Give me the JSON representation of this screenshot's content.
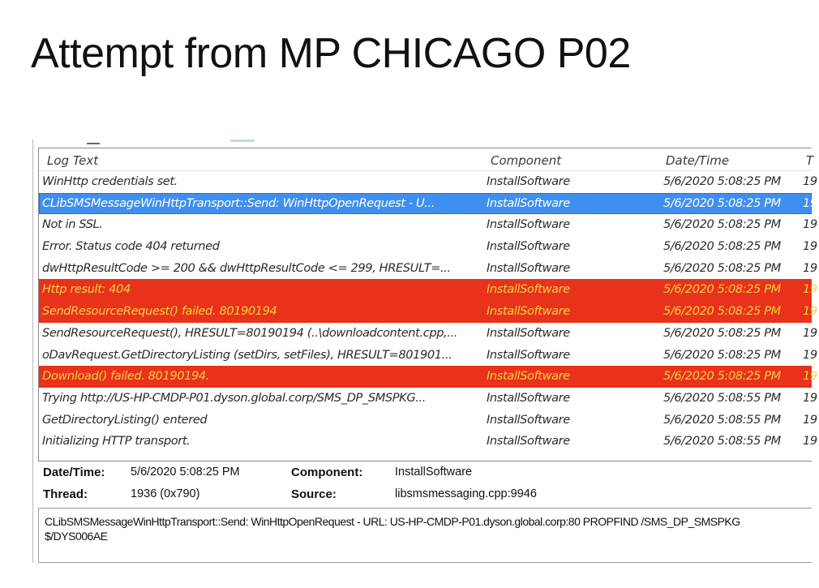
{
  "slide": {
    "title": "Attempt from MP CHICAGO P02"
  },
  "log": {
    "columns": [
      "Log Text",
      "Component",
      "Date/Time",
      "T"
    ],
    "rows": [
      {
        "text": "WinHttp credentials set.",
        "component": "InstallSoftware",
        "datetime": "5/6/2020 5:08:25 PM",
        "thread": "19",
        "state": "normal"
      },
      {
        "text": "CLibSMSMessageWinHttpTransport::Send: WinHttpOpenRequest - U...",
        "component": "InstallSoftware",
        "datetime": "5/6/2020 5:08:25 PM",
        "thread": "19",
        "state": "selected"
      },
      {
        "text": "Not in SSL.",
        "component": "InstallSoftware",
        "datetime": "5/6/2020 5:08:25 PM",
        "thread": "19",
        "state": "normal"
      },
      {
        "text": "Error. Status code 404 returned",
        "component": "InstallSoftware",
        "datetime": "5/6/2020 5:08:25 PM",
        "thread": "19",
        "state": "normal"
      },
      {
        "text": "dwHttpResultCode >= 200 && dwHttpResultCode <= 299, HRESULT=...",
        "component": "InstallSoftware",
        "datetime": "5/6/2020 5:08:25 PM",
        "thread": "19",
        "state": "normal"
      },
      {
        "text": "Http result: 404",
        "component": "InstallSoftware",
        "datetime": "5/6/2020 5:08:25 PM",
        "thread": "19",
        "state": "error"
      },
      {
        "text": "SendResourceRequest() failed. 80190194",
        "component": "InstallSoftware",
        "datetime": "5/6/2020 5:08:25 PM",
        "thread": "19",
        "state": "error"
      },
      {
        "text": "SendResourceRequest(), HRESULT=80190194 (..\\downloadcontent.cpp,...",
        "component": "InstallSoftware",
        "datetime": "5/6/2020 5:08:25 PM",
        "thread": "19",
        "state": "normal"
      },
      {
        "text": "oDavRequest.GetDirectoryListing (setDirs, setFiles), HRESULT=801901...",
        "component": "InstallSoftware",
        "datetime": "5/6/2020 5:08:25 PM",
        "thread": "19",
        "state": "normal"
      },
      {
        "text": "Download() failed. 80190194.",
        "component": "InstallSoftware",
        "datetime": "5/6/2020 5:08:25 PM",
        "thread": "19",
        "state": "error"
      },
      {
        "text": "Trying http://US-HP-CMDP-P01.dyson.global.corp/SMS_DP_SMSPKG...",
        "component": "InstallSoftware",
        "datetime": "5/6/2020 5:08:55 PM",
        "thread": "19",
        "state": "normal"
      },
      {
        "text": "GetDirectoryListing() entered",
        "component": "InstallSoftware",
        "datetime": "5/6/2020 5:08:55 PM",
        "thread": "19",
        "state": "normal"
      },
      {
        "text": "Initializing HTTP transport.",
        "component": "InstallSoftware",
        "datetime": "5/6/2020 5:08:55 PM",
        "thread": "19",
        "state": "normal"
      }
    ]
  },
  "details": {
    "datetime_label": "Date/Time:",
    "datetime_value": "5/6/2020 5:08:25 PM",
    "component_label": "Component:",
    "component_value": "InstallSoftware",
    "thread_label": "Thread:",
    "thread_value": "1936 (0x790)",
    "source_label": "Source:",
    "source_value": "libsmsmessaging.cpp:9946"
  },
  "message": {
    "line1": "CLibSMSMessageWinHttpTransport::Send: WinHttpOpenRequest - URL: US-HP-CMDP-P01.dyson.global.corp:80  PROPFIND /SMS_DP_SMSPKG",
    "line2": "$/DYS006AE"
  },
  "colors": {
    "selected": "#3f8ff0",
    "error": "#e8321c",
    "error_text": "#f5d23a"
  }
}
